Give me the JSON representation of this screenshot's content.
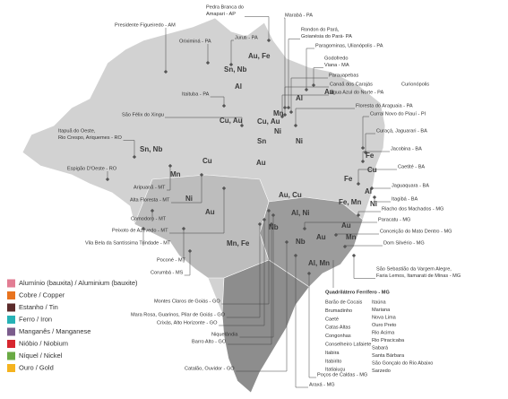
{
  "legend": [
    {
      "label": "Alumínio (bauxita) / Aluminium (bauxite)",
      "color": "#e27d93"
    },
    {
      "label": "Cobre / Copper",
      "color": "#e8731e"
    },
    {
      "label": "Estanho / Tin",
      "color": "#5b2b2b"
    },
    {
      "label": "Ferro / Iron",
      "color": "#27b2b6"
    },
    {
      "label": "Manganês / Manganese",
      "color": "#7b5c8c"
    },
    {
      "label": "Nióbio / Niobium",
      "color": "#d7262e"
    },
    {
      "label": "Níquel / Nickel",
      "color": "#6aaa44"
    },
    {
      "label": "Ouro / Gold",
      "color": "#f5b31f"
    }
  ],
  "places": [
    {
      "lines": [
        "Presidente Figueiredo - AM"
      ]
    },
    {
      "lines": [
        "Pedra Branca do",
        "Amapari - AP"
      ]
    },
    {
      "lines": [
        "Marabá - PA"
      ]
    },
    {
      "lines": [
        "Oriximiná - PA"
      ]
    },
    {
      "lines": [
        "Juruti - PA"
      ]
    },
    {
      "lines": [
        "Rondon do Pará,",
        "Goianésia do Pará- PA"
      ]
    },
    {
      "lines": [
        "Paragominas, Ulianópolis - PA"
      ]
    },
    {
      "lines": [
        "Godofredo",
        "Viana - MA"
      ]
    },
    {
      "lines": [
        "Parauapebas"
      ]
    },
    {
      "lines": [
        "Canaã dos Carajás"
      ]
    },
    {
      "lines": [
        "Curionópolis"
      ]
    },
    {
      "lines": [
        "Água Azul do Norte - PA"
      ]
    },
    {
      "lines": [
        "Itaituba - PA"
      ]
    },
    {
      "lines": [
        "Floresta do Araguaia - PA"
      ]
    },
    {
      "lines": [
        "São Félix do Xingu"
      ]
    },
    {
      "lines": [
        "Curral Novo do Piauí - PI"
      ]
    },
    {
      "lines": [
        "Itapuã do Oeste,",
        "Rio Crespo, Ariquemes - RO"
      ]
    },
    {
      "lines": [
        "Curaçá, Jaguarari - BA"
      ]
    },
    {
      "lines": [
        "Jacobina - BA"
      ]
    },
    {
      "lines": [
        "Espigão D'Oeste - RO"
      ]
    },
    {
      "lines": [
        "Caetité - BA"
      ]
    },
    {
      "lines": [
        "Aripuanã - MT"
      ]
    },
    {
      "lines": [
        "Jaguaquara - BA"
      ]
    },
    {
      "lines": [
        "Alta Floresta - MT"
      ]
    },
    {
      "lines": [
        "Itagibá - BA"
      ]
    },
    {
      "lines": [
        "Riacho dos Machados - MG"
      ]
    },
    {
      "lines": [
        "Comodoro - MT"
      ]
    },
    {
      "lines": [
        "Paracatu - MG"
      ]
    },
    {
      "lines": [
        "Peixoto de Azevedo - MT"
      ]
    },
    {
      "lines": [
        "Conceição do Mato Dentro - MG"
      ]
    },
    {
      "lines": [
        "Vila Bela da Santíssima Trindade - MT"
      ]
    },
    {
      "lines": [
        "Dom Silvério - MG"
      ]
    },
    {
      "lines": [
        "Poconé - MT"
      ]
    },
    {
      "lines": [
        "Corumbá - MS"
      ]
    },
    {
      "lines": [
        "São Sebastião da Vargem Alegre,",
        "Faria Lemos, Itamarati de Minas - MG"
      ]
    },
    {
      "lines": [
        "Montes Claros de Goiás - GO"
      ]
    },
    {
      "lines": [
        "Mara Rosa, Guarinos, Pilar de Goiás - GO"
      ]
    },
    {
      "lines": [
        "Crixás, Alto Horizonte - GO"
      ]
    },
    {
      "lines": [
        "Niquelândia"
      ]
    },
    {
      "lines": [
        "Barro Alto - GO"
      ]
    },
    {
      "lines": [
        "Catalão, Ouvidor - GO"
      ]
    },
    {
      "lines": [
        "Poços de Caldas - MG"
      ]
    },
    {
      "lines": [
        "Araxá - MG"
      ]
    }
  ],
  "symbols": [
    "Sn, Nb",
    "Al",
    "Au, Fe",
    "Al",
    "Au",
    "Cu, Au",
    "Mn",
    "Cu, Au",
    "Ni",
    "Sn",
    "Ni",
    "Sn, Nb",
    "Mn",
    "Cu",
    "Au",
    "Fe",
    "Cu",
    "Fe",
    "Ni",
    "Al",
    "Ni",
    "Au",
    "Au, Cu",
    "Al, Ni",
    "Fe, Mn",
    "Nb",
    "Au",
    "Nb",
    "Au",
    "Mn",
    "Mn, Fe",
    "Al, Mn"
  ],
  "quadrilatero": {
    "title": "Quadrilátero Ferrífero - MG",
    "left": [
      "Barão de Cocais",
      "Brumadinho",
      "Caeté",
      "Catas Altas",
      "Congonhas",
      "Conselheiro Lafaiete",
      "Itabira",
      "Itabirito",
      "Itatiaiuçu"
    ],
    "right": [
      "Itaúna",
      "Mariana",
      "Nova Lima",
      "Ouro Preto",
      "Rio Acima",
      "Rio Piracicaba",
      "Sabará",
      "Santa Bárbara",
      "São Gonçalo do Rio Abaixo",
      "Sarzedo"
    ]
  }
}
